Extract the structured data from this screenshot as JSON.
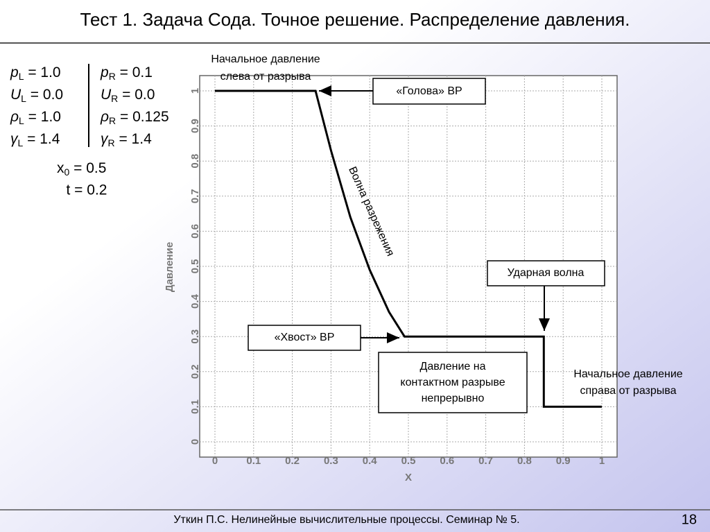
{
  "slide": {
    "title": "Тест 1. Задача Сода. Точное решение. Распределение давления.",
    "footer": "Уткин П.С. Нелинейные вычислительные процессы. Семинар № 5.",
    "page": 18
  },
  "parameters": {
    "left": [
      {
        "symbol": "p",
        "sub": "L",
        "value": " = 1.0"
      },
      {
        "symbol": "U",
        "sub": "L",
        "value": " = 0.0"
      },
      {
        "symbol": "ρ",
        "sub": "L",
        "value": " = 1.0"
      },
      {
        "symbol": "γ",
        "sub": "L",
        "value": " = 1.4"
      }
    ],
    "right": [
      {
        "symbol": "p",
        "sub": "R",
        "value": " = 0.1"
      },
      {
        "symbol": "U",
        "sub": "R",
        "value": " = 0.0"
      },
      {
        "symbol": "ρ",
        "sub": "R",
        "value": " = 0.125"
      },
      {
        "symbol": "γ",
        "sub": "R",
        "value": " = 1.4"
      }
    ],
    "x0": {
      "symbol": "x",
      "sub": "0",
      "value": " = 0.5"
    },
    "t": "t = 0.2"
  },
  "chart_data": {
    "type": "line",
    "xlabel": "X",
    "ylabel": "Давление",
    "x": [
      0,
      0.26,
      0.3,
      0.35,
      0.4,
      0.45,
      0.49,
      0.85,
      0.85,
      1
    ],
    "values": [
      1,
      1,
      0.83,
      0.64,
      0.49,
      0.37,
      0.3,
      0.3,
      0.1,
      0.1
    ],
    "color": "#000000",
    "xlim": [
      0,
      1
    ],
    "ylim": [
      0,
      1
    ],
    "xticks": [
      0,
      0.1,
      0.2,
      0.3,
      0.4,
      0.5,
      0.6,
      0.7,
      0.8,
      0.9,
      1
    ],
    "yticks": [
      0,
      0.1,
      0.2,
      0.3,
      0.4,
      0.5,
      0.6,
      0.7,
      0.8,
      0.9,
      1
    ],
    "grid": true,
    "annotations": {
      "left_initial": [
        "Начальное давление",
        "слева от разрыва"
      ],
      "head": "«Голова» ВР",
      "rarefaction": "Волна разрежения",
      "shock": "Ударная волна",
      "tail": "«Хвост» ВР",
      "contact": [
        "Давление на",
        "контактном разрыве",
        "непрерывно"
      ],
      "right_initial": [
        "Начальное давление",
        "справа от разрыва"
      ]
    }
  }
}
